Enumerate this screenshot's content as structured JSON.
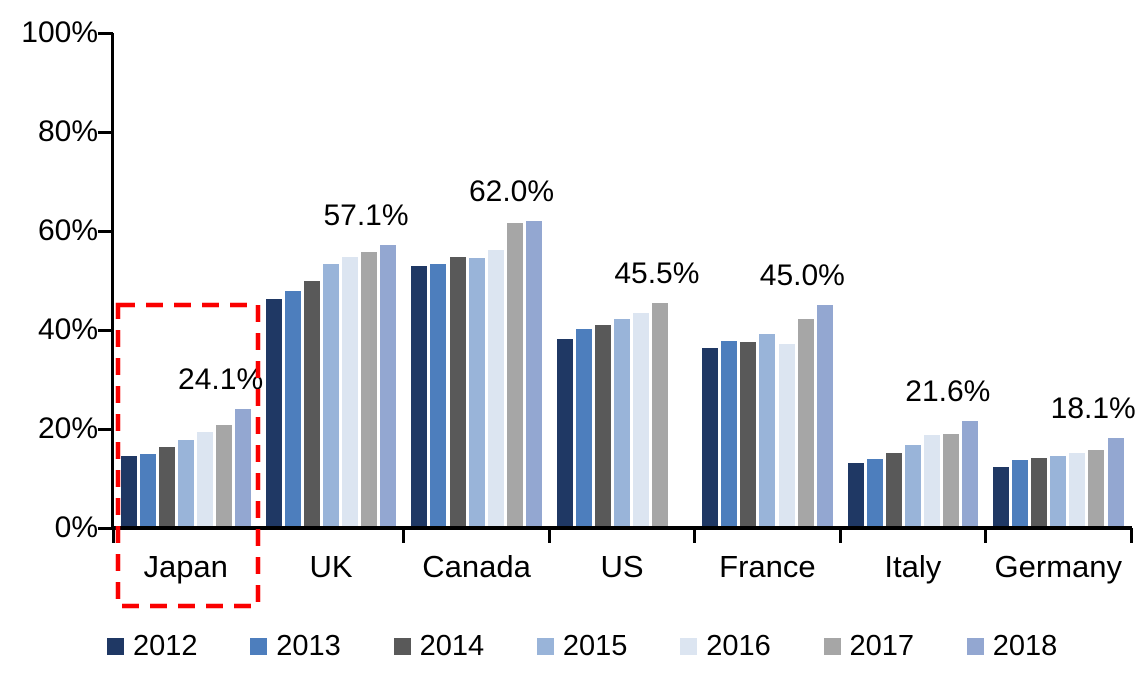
{
  "chart_data": {
    "type": "bar",
    "title": "",
    "xlabel": "",
    "ylabel": "",
    "categories": [
      "Japan",
      "UK",
      "Canada",
      "US",
      "France",
      "Italy",
      "Germany"
    ],
    "series": [
      {
        "name": "2012",
        "color": "#1f3864",
        "values": [
          14.6,
          46.3,
          52.9,
          38.2,
          36.4,
          13.2,
          12.4
        ]
      },
      {
        "name": "2013",
        "color": "#4d7ebd",
        "values": [
          14.9,
          47.9,
          53.4,
          40.2,
          37.7,
          14.0,
          13.8
        ]
      },
      {
        "name": "2014",
        "color": "#595959",
        "values": [
          16.4,
          50.0,
          54.8,
          41.0,
          37.6,
          15.2,
          14.2
        ]
      },
      {
        "name": "2015",
        "color": "#99b4d9",
        "values": [
          17.7,
          53.3,
          54.6,
          42.2,
          39.2,
          16.7,
          14.6
        ]
      },
      {
        "name": "2016",
        "color": "#dce5f1",
        "values": [
          19.5,
          54.8,
          56.1,
          43.5,
          37.2,
          18.8,
          15.1
        ]
      },
      {
        "name": "2017",
        "color": "#a6a6a6",
        "values": [
          20.9,
          55.8,
          61.7,
          45.5,
          42.3,
          19.0,
          15.7
        ]
      },
      {
        "name": "2018",
        "color": "#93a7d1",
        "values": [
          24.1,
          57.1,
          62.0,
          null,
          45.0,
          21.6,
          18.1
        ]
      }
    ],
    "group_end_labels": [
      "24.1%",
      "57.1%",
      "62.0%",
      "45.5%",
      "45.0%",
      "21.6%",
      "18.1%"
    ],
    "yticks": [
      {
        "label": "0%",
        "value": 0
      },
      {
        "label": "20%",
        "value": 20
      },
      {
        "label": "40%",
        "value": 40
      },
      {
        "label": "60%",
        "value": 60
      },
      {
        "label": "80%",
        "value": 80
      },
      {
        "label": "100%",
        "value": 100
      }
    ],
    "ylim": [
      0,
      100
    ],
    "grid": false,
    "legend_position": "bottom",
    "annotations": {
      "highlight_category": "Japan",
      "highlight_style": "red dashed rectangle",
      "highlight_color": "#fa0000"
    }
  }
}
